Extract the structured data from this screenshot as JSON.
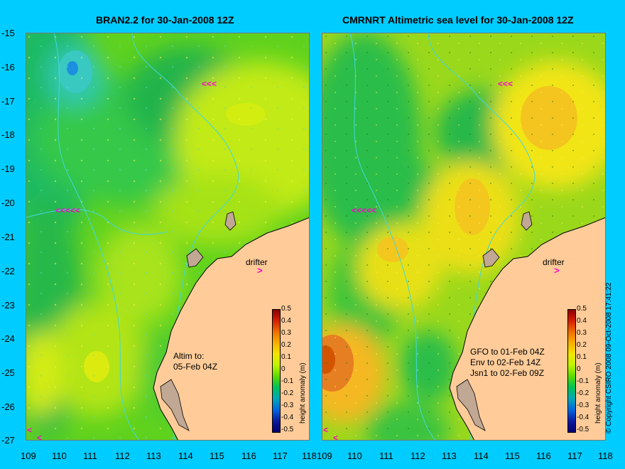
{
  "titles": {
    "left": "BRAN2.2 for 30-Jan-2008 12Z",
    "right": "CMRNRT Altimetric sea level  for 30-Jan-2008 12Z"
  },
  "y_ticks": [
    "-15",
    "-16",
    "-17",
    "-18",
    "-19",
    "-20",
    "-21",
    "-22",
    "-23",
    "-24",
    "-25",
    "-26",
    "-27"
  ],
  "x_ticks_left": [
    "109",
    "110",
    "111",
    "112",
    "113",
    "114",
    "115",
    "116",
    "117",
    "118"
  ],
  "x_ticks_right": [
    "109",
    "110",
    "111",
    "112",
    "113",
    "114",
    "115",
    "116",
    "117",
    "118"
  ],
  "colorbar": {
    "title": "height anomaly (m)",
    "ticks": [
      "0.5",
      "0.4",
      "0.3",
      "0.2",
      "0.1",
      "0",
      "-0.1",
      "-0.2",
      "-0.3",
      "-0.4",
      "-0.5"
    ]
  },
  "annotations": {
    "left_line1": "Altim to:",
    "left_line2": "05-Feb 04Z",
    "right_line1": "GFO to 01-Feb 04Z",
    "right_line2": "Env to 02-Feb 14Z",
    "right_line3": "Jsn1 to 02-Feb 09Z"
  },
  "drifter": {
    "label": "drifter",
    "arrow": ">"
  },
  "copyright": "© Copyright CSIRO 2008   09-Oct-2008 17:41:22",
  "colors": {
    "background": "#00ccff",
    "land": "#ffcc99",
    "coast_islands": "#c0a894",
    "arrow": "#ff00cc"
  },
  "chart_data": {
    "type": "heatmap",
    "xlim": [
      109,
      118
    ],
    "ylim": [
      -27,
      -15
    ],
    "panels": [
      {
        "name": "BRAN2.2",
        "field": [
          {
            "lon": 110.5,
            "lat": -16.0,
            "value": -0.25
          },
          {
            "lon": 110.3,
            "lat": -16.2,
            "value": -0.15
          },
          {
            "lon": 112.5,
            "lat": -17.3,
            "value": -0.05
          },
          {
            "lon": 116.2,
            "lat": -17.6,
            "value": 0.15
          },
          {
            "lon": 115.4,
            "lat": -18.3,
            "value": 0.1
          },
          {
            "lon": 110.3,
            "lat": -20.3,
            "value": -0.05
          },
          {
            "lon": 111.6,
            "lat": -21.8,
            "value": 0.1
          },
          {
            "lon": 112.9,
            "lat": -21.2,
            "value": 0.05
          },
          {
            "lon": 111.9,
            "lat": -24.5,
            "value": 0.15
          },
          {
            "lon": 109.4,
            "lat": -24.7,
            "value": 0.12
          },
          {
            "lon": 109.8,
            "lat": -26.6,
            "value": 0.05
          }
        ]
      },
      {
        "name": "CMRNRT",
        "field": [
          {
            "lon": 109.3,
            "lat": -25.1,
            "value": 0.3
          },
          {
            "lon": 109.8,
            "lat": -25.6,
            "value": 0.2
          },
          {
            "lon": 116.6,
            "lat": -17.6,
            "value": 0.2
          },
          {
            "lon": 114.0,
            "lat": -20.0,
            "value": 0.2
          },
          {
            "lon": 112.0,
            "lat": -21.6,
            "value": 0.2
          },
          {
            "lon": 110.1,
            "lat": -18.9,
            "value": -0.1
          },
          {
            "lon": 112.8,
            "lat": -17.6,
            "value": -0.1
          },
          {
            "lon": 114.5,
            "lat": -18.0,
            "value": -0.05
          },
          {
            "lon": 110.2,
            "lat": -16.5,
            "value": -0.1
          },
          {
            "lon": 112.0,
            "lat": -19.8,
            "value": -0.05
          },
          {
            "lon": 112.3,
            "lat": -26.0,
            "value": -0.05
          },
          {
            "lon": 111.0,
            "lat": -23.3,
            "value": -0.05
          }
        ]
      }
    ]
  }
}
